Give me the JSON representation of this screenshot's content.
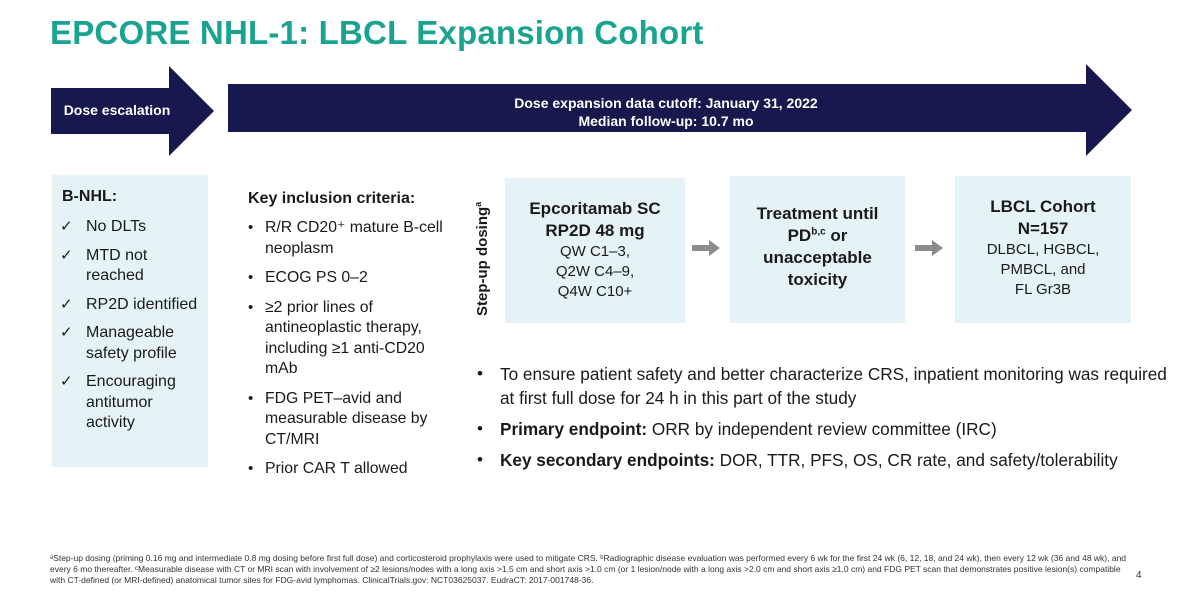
{
  "title": "EPCORE NHL-1: LBCL Expansion Cohort",
  "colors": {
    "title": "#1aa38f",
    "arrow": "#16184e",
    "box_fill": "#e5f3f6",
    "flow_arrow": "#8c8c8c"
  },
  "arrows": {
    "dose_escalation": "Dose escalation",
    "expansion_line1": "Dose expansion data cutoff: January 31, 2022",
    "expansion_line2": "Median follow-up: 10.7 mo"
  },
  "bnhl": {
    "heading": "B-NHL:",
    "check_icon": "✓",
    "items": [
      "No DLTs",
      "MTD not reached",
      "RP2D identified",
      "Manageable safety profile",
      "Encouraging antitumor activity"
    ]
  },
  "criteria": {
    "heading": "Key inclusion criteria:",
    "bullet": "•",
    "items": [
      "R/R CD20⁺ mature B-cell neoplasm",
      "ECOG PS 0–2",
      "≥2 prior lines of antineoplastic therapy, including ≥1 anti-CD20 mAb",
      "FDG PET–avid and measurable disease by CT/MRI",
      "Prior CAR T allowed"
    ]
  },
  "stepup": {
    "label": "Step-up dosing",
    "sup": "a"
  },
  "flow": {
    "box_a": {
      "title1": "Epcoritamab SC",
      "title2": "RP2D 48 mg",
      "lines": [
        "QW C1–3,",
        "Q2W C4–9,",
        "Q4W C10+"
      ]
    },
    "box_b": {
      "line1": "Treatment until",
      "line2_pre": "PD",
      "line2_sup": "b,c",
      "line2_post": " or",
      "line3": "unacceptable",
      "line4": "toxicity"
    },
    "box_c": {
      "title1": "LBCL Cohort",
      "title2": "N=157",
      "lines": [
        "DLBCL, HGBCL,",
        "PMBCL, and",
        "FL Gr3B"
      ]
    }
  },
  "main_bullets": {
    "bullet": "•",
    "item1": "To ensure patient safety and better characterize CRS, inpatient monitoring was required at first full dose for 24 h in this part of the study",
    "item2_label": "Primary endpoint:",
    "item2_text": " ORR by independent review committee (IRC)",
    "item3_label": "Key secondary endpoints:",
    "item3_text": " DOR, TTR, PFS, OS, CR rate, and safety/tolerability"
  },
  "footnote": "ᵃStep-up dosing (priming 0.16 mg and intermediate 0.8 mg dosing before first full dose) and corticosteroid prophylaxis were used to mitigate CRS. ᵇRadiographic disease evaluation was performed every 6 wk for the first 24 wk (6, 12, 18, and 24 wk), then every 12 wk (36 and 48 wk), and every 6 mo thereafter. ᶜMeasurable disease with CT or MRI scan with involvement of ≥2 lesions/nodes with a long axis >1.5 cm and short axis >1.0 cm (or 1 lesion/node with a long axis >2.0 cm and short axis ≥1.0 cm) and FDG PET scan that demonstrates positive lesion(s) compatible with CT-defined (or MRI-defined) anatomical tumor sites for FDG-avid lymphomas. ClinicalTrials.gov: NCT03625037. EudraCT: 2017-001748-36.",
  "page_number": "4"
}
